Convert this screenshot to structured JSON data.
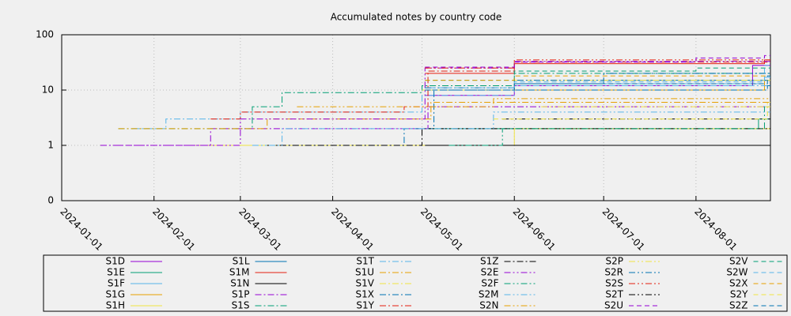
{
  "chart_data": {
    "type": "line",
    "title": "Accumulated notes by country code",
    "log_y": true,
    "grid": true,
    "xlim": [
      "2024-01-01",
      "2024-08-26"
    ],
    "xticks": [
      "2024-01-01",
      "2024-02-01",
      "2024-03-01",
      "2024-04-01",
      "2024-05-01",
      "2024-06-01",
      "2024-07-01",
      "2024-08-01"
    ],
    "ylim": [
      0.1,
      100
    ],
    "yticks": [
      {
        "value": 0.1,
        "label": "0"
      },
      1,
      10,
      100
    ],
    "series": [
      {
        "name": "S1D",
        "color": "#9400d3",
        "dash": "solid",
        "x": [
          "2024-05-02",
          "2024-06-01",
          "2024-08-20"
        ],
        "values": [
          8,
          12,
          28
        ]
      },
      {
        "name": "S1E",
        "color": "#009e73",
        "dash": "solid",
        "x": [
          "2024-05-02",
          "2024-08-22"
        ],
        "values": [
          2,
          3
        ]
      },
      {
        "name": "S1F",
        "color": "#56b4e9",
        "dash": "solid",
        "x": [
          "2024-05-03",
          "2024-06-01",
          "2024-08-24"
        ],
        "values": [
          10,
          13,
          17
        ]
      },
      {
        "name": "S1G",
        "color": "#e69f00",
        "dash": "solid",
        "x": [
          "2024-06-01",
          "2024-08-24"
        ],
        "values": [
          10,
          15
        ]
      },
      {
        "name": "S1H",
        "color": "#f0e442",
        "dash": "solid",
        "x": [
          "2024-02-15",
          "2024-06-01"
        ],
        "values": [
          1,
          2
        ]
      },
      {
        "name": "S1L",
        "color": "#0072b2",
        "dash": "solid",
        "x": [
          "2024-05-03",
          "2024-06-01",
          "2024-07-01"
        ],
        "values": [
          10,
          13,
          15
        ]
      },
      {
        "name": "S1M",
        "color": "#e51e10",
        "dash": "solid",
        "x": [
          "2024-05-02",
          "2024-06-01",
          "2024-08-24"
        ],
        "values": [
          20,
          30,
          35
        ]
      },
      {
        "name": "S1N",
        "color": "#000000",
        "dash": "solid",
        "x": [
          "2024-05-02"
        ],
        "values": [
          1
        ]
      },
      {
        "name": "S1P",
        "color": "#9400d3",
        "dash": "dashdot",
        "x": [
          "2024-01-14",
          "2024-02-20",
          "2024-05-03"
        ],
        "values": [
          1,
          2,
          5
        ]
      },
      {
        "name": "S1S",
        "color": "#009e73",
        "dash": "dashdot",
        "x": [
          "2024-01-20",
          "2024-03-05",
          "2024-03-15",
          "2024-05-01",
          "2024-06-01"
        ],
        "values": [
          2,
          5,
          9,
          12,
          20
        ]
      },
      {
        "name": "S1T",
        "color": "#56b4e9",
        "dash": "dashdot",
        "x": [
          "2024-01-25",
          "2024-02-05",
          "2024-03-01",
          "2024-05-01",
          "2024-06-01"
        ],
        "values": [
          2,
          3,
          4,
          8,
          12
        ]
      },
      {
        "name": "S1U",
        "color": "#e69f00",
        "dash": "dashdot",
        "x": [
          "2024-01-20",
          "2024-03-10",
          "2024-05-04"
        ],
        "values": [
          2,
          3,
          6
        ]
      },
      {
        "name": "S1V",
        "color": "#f0e442",
        "dash": "dashdot",
        "x": [
          "2024-05-01",
          "2024-06-01"
        ],
        "values": [
          10,
          15
        ]
      },
      {
        "name": "S1X",
        "color": "#0072b2",
        "dash": "dashdot",
        "x": [
          "2024-03-10",
          "2024-04-25",
          "2024-05-05",
          "2024-08-25"
        ],
        "values": [
          1,
          2,
          10,
          12
        ]
      },
      {
        "name": "S1Y",
        "color": "#e51e10",
        "dash": "dashdot",
        "x": [
          "2024-02-20",
          "2024-03-01",
          "2024-04-25",
          "2024-05-03",
          "2024-06-01"
        ],
        "values": [
          3,
          4,
          5,
          22,
          32
        ]
      },
      {
        "name": "S1Z",
        "color": "#000000",
        "dash": "dashdot",
        "x": [
          "2024-03-10",
          "2024-05-01"
        ],
        "values": [
          1,
          2
        ]
      },
      {
        "name": "S2E",
        "color": "#9400d3",
        "dash": "dashdotdot",
        "x": [
          "2024-01-14",
          "2024-03-01",
          "2024-05-02",
          "2024-06-01"
        ],
        "values": [
          1,
          3,
          25,
          33
        ]
      },
      {
        "name": "S2F",
        "color": "#009e73",
        "dash": "dashdotdot",
        "x": [
          "2024-05-10",
          "2024-05-28",
          "2024-08-24"
        ],
        "values": [
          1,
          2,
          5
        ]
      },
      {
        "name": "S2M",
        "color": "#56b4e9",
        "dash": "dashdotdot",
        "x": [
          "2024-03-05",
          "2024-03-15",
          "2024-05-25"
        ],
        "values": [
          1,
          2,
          4
        ]
      },
      {
        "name": "S2N",
        "color": "#e69f00",
        "dash": "dashdotdot",
        "x": [
          "2024-03-20",
          "2024-05-25"
        ],
        "values": [
          5,
          7
        ]
      },
      {
        "name": "S2P",
        "color": "#f0e442",
        "dash": "dashdotdot",
        "x": [
          "2024-06-10",
          "2024-08-25"
        ],
        "values": [
          5,
          6
        ]
      },
      {
        "name": "S2R",
        "color": "#0072b2",
        "dash": "dashdotdot",
        "x": [
          "2024-05-02",
          "2024-06-01",
          "2024-07-01"
        ],
        "values": [
          11,
          15,
          20
        ]
      },
      {
        "name": "S2S",
        "color": "#e51e10",
        "dash": "dashdotdot",
        "x": [
          "2024-05-02",
          "2024-06-01"
        ],
        "values": [
          25,
          35
        ]
      },
      {
        "name": "S2T",
        "color": "#000000",
        "dash": "dashdotdot",
        "x": [
          "2024-05-28"
        ],
        "values": [
          3
        ]
      },
      {
        "name": "S2U",
        "color": "#9400d3",
        "dash": "dashed",
        "x": [
          "2024-05-02",
          "2024-06-01",
          "2024-08-01",
          "2024-08-24"
        ],
        "values": [
          26,
          32,
          38,
          42
        ]
      },
      {
        "name": "S2V",
        "color": "#009e73",
        "dash": "dashed",
        "x": [
          "2024-05-02",
          "2024-06-01",
          "2024-08-01"
        ],
        "values": [
          15,
          22,
          25
        ]
      },
      {
        "name": "S2W",
        "color": "#56b4e9",
        "dash": "dashed",
        "x": [
          "2024-05-04",
          "2024-06-01",
          "2024-08-24"
        ],
        "values": [
          11,
          14,
          28
        ]
      },
      {
        "name": "S2X",
        "color": "#e69f00",
        "dash": "dashed",
        "x": [
          "2024-05-02",
          "2024-06-01"
        ],
        "values": [
          15,
          18
        ]
      },
      {
        "name": "S2Y",
        "color": "#f0e442",
        "dash": "dashed",
        "x": [
          "2024-05-25",
          "2024-08-25"
        ],
        "values": [
          3,
          5
        ]
      },
      {
        "name": "S2Z",
        "color": "#0072b2",
        "dash": "dashed",
        "x": [
          "2024-05-02",
          "2024-06-01",
          "2024-08-25"
        ],
        "values": [
          10,
          13,
          18
        ]
      }
    ]
  }
}
